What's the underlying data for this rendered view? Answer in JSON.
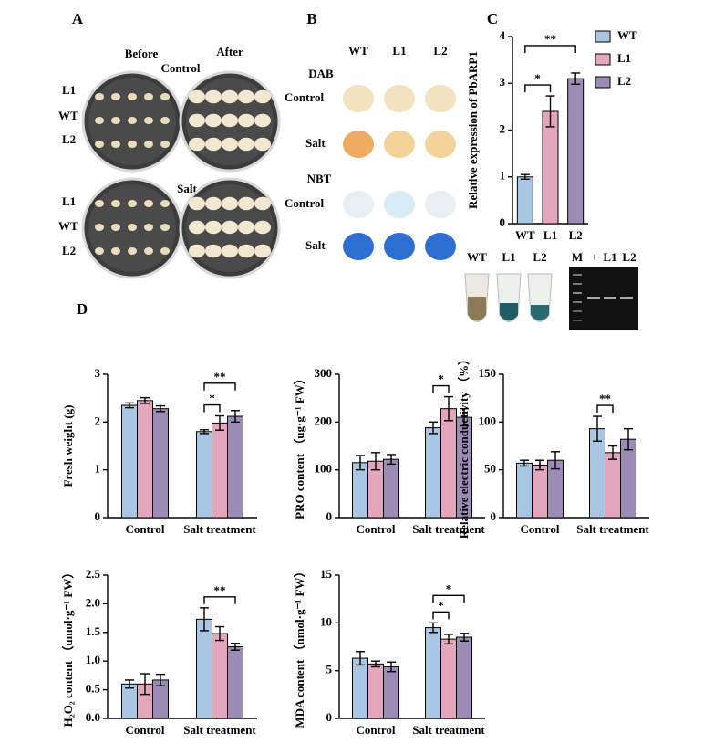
{
  "panels": {
    "A": {
      "letter": "A",
      "before": "Before",
      "after": "After",
      "control": "Control",
      "salt": "Salt",
      "rows": [
        "L1",
        "WT",
        "L2"
      ]
    },
    "B": {
      "letter": "B",
      "columns": [
        "WT",
        "L1",
        "L2"
      ],
      "dab": "DAB",
      "nbt": "NBT",
      "control": "Control",
      "salt": "Salt"
    },
    "C": {
      "letter": "C",
      "gel_tubes": [
        "WT",
        "L1",
        "L2"
      ],
      "gel_lanes": [
        "M",
        "+",
        "L1",
        "L2"
      ]
    },
    "D": {
      "letter": "D"
    }
  },
  "chart_data": [
    {
      "type": "bar",
      "ylabel": "Relative expression of PbARP1",
      "categories": [
        "WT",
        "L1",
        "L2"
      ],
      "values": [
        1.0,
        2.4,
        3.1
      ],
      "errors": [
        0.05,
        0.33,
        0.12
      ],
      "colors": [
        "#a9c6e3",
        "#e3a6bd",
        "#9b8bb5"
      ],
      "ylim": [
        0,
        4
      ],
      "yticks": [
        0,
        1,
        2,
        3,
        4
      ],
      "legend": "right",
      "annotations": [
        {
          "text": "*",
          "between": [
            "WT",
            "L1"
          ]
        },
        {
          "text": "**",
          "between": [
            "WT",
            "L2"
          ]
        }
      ]
    },
    {
      "type": "grouped_bar",
      "ylabel": "Fresh weight (g)",
      "categories": [
        "Control",
        "Salt treatment"
      ],
      "series": [
        {
          "name": "WT",
          "color": "#a9c6e3",
          "values": [
            2.35,
            1.8
          ],
          "errors": [
            0.05,
            0.04
          ]
        },
        {
          "name": "L1",
          "color": "#e3a6bd",
          "values": [
            2.45,
            1.98
          ],
          "errors": [
            0.06,
            0.15
          ]
        },
        {
          "name": "L2",
          "color": "#9b8bb5",
          "values": [
            2.28,
            2.12
          ],
          "errors": [
            0.06,
            0.12
          ]
        }
      ],
      "ylim": [
        0,
        3
      ],
      "yticks": [
        0,
        1,
        2,
        3
      ],
      "annotations": [
        {
          "text": "*",
          "category": "Salt treatment",
          "between": [
            "WT",
            "L1"
          ]
        },
        {
          "text": "**",
          "category": "Salt treatment",
          "between": [
            "WT",
            "L2"
          ]
        }
      ]
    },
    {
      "type": "grouped_bar",
      "ylabel": "PRO content （ug·g⁻¹ FW）",
      "categories": [
        "Control",
        "Salt treatment"
      ],
      "series": [
        {
          "name": "WT",
          "color": "#a9c6e3",
          "values": [
            115,
            188
          ],
          "errors": [
            15,
            12
          ]
        },
        {
          "name": "L1",
          "color": "#e3a6bd",
          "values": [
            118,
            228
          ],
          "errors": [
            18,
            25
          ]
        },
        {
          "name": "L2",
          "color": "#9b8bb5",
          "values": [
            122,
            210
          ],
          "errors": [
            10,
            18
          ]
        }
      ],
      "ylim": [
        0,
        300
      ],
      "yticks": [
        0,
        100,
        200,
        300
      ],
      "annotations": [
        {
          "text": "*",
          "category": "Salt treatment",
          "between": [
            "WT",
            "L1"
          ]
        }
      ]
    },
    {
      "type": "grouped_bar",
      "ylabel": "Relative electric conductivity （%）",
      "categories": [
        "Control",
        "Salt treatment"
      ],
      "series": [
        {
          "name": "WT",
          "color": "#a9c6e3",
          "values": [
            57,
            93
          ],
          "errors": [
            3,
            13
          ]
        },
        {
          "name": "L1",
          "color": "#e3a6bd",
          "values": [
            55,
            68
          ],
          "errors": [
            5,
            7
          ]
        },
        {
          "name": "L2",
          "color": "#9b8bb5",
          "values": [
            60,
            82
          ],
          "errors": [
            9,
            11
          ]
        }
      ],
      "ylim": [
        0,
        150
      ],
      "yticks": [
        0,
        50,
        100,
        150
      ],
      "annotations": [
        {
          "text": "**",
          "category": "Salt treatment",
          "between": [
            "WT",
            "L1"
          ]
        }
      ]
    },
    {
      "type": "grouped_bar",
      "ylabel": "H₂O₂ content （umol·g⁻¹ FW）",
      "categories": [
        "Control",
        "Salt treatment"
      ],
      "series": [
        {
          "name": "WT",
          "color": "#a9c6e3",
          "values": [
            0.6,
            1.73
          ],
          "errors": [
            0.07,
            0.2
          ]
        },
        {
          "name": "L1",
          "color": "#e3a6bd",
          "values": [
            0.6,
            1.48
          ],
          "errors": [
            0.18,
            0.12
          ]
        },
        {
          "name": "L2",
          "color": "#9b8bb5",
          "values": [
            0.67,
            1.25
          ],
          "errors": [
            0.1,
            0.06
          ]
        }
      ],
      "ylim": [
        0,
        2.5
      ],
      "yticks": [
        {
          "value": 0,
          "label": "0.0"
        },
        0.5,
        {
          "value": 1,
          "label": "1.0"
        },
        1.5,
        {
          "value": 2,
          "label": "2.0"
        },
        2.5
      ],
      "annotations": [
        {
          "text": "**",
          "category": "Salt treatment",
          "between": [
            "WT",
            "L2"
          ]
        }
      ]
    },
    {
      "type": "grouped_bar",
      "ylabel": "MDA content （nmol·g⁻¹ FW）",
      "categories": [
        "Control",
        "Salt treatment"
      ],
      "series": [
        {
          "name": "WT",
          "color": "#a9c6e3",
          "values": [
            6.3,
            9.5
          ],
          "errors": [
            0.7,
            0.5
          ]
        },
        {
          "name": "L1",
          "color": "#e3a6bd",
          "values": [
            5.7,
            8.3
          ],
          "errors": [
            0.3,
            0.5
          ]
        },
        {
          "name": "L2",
          "color": "#9b8bb5",
          "values": [
            5.4,
            8.5
          ],
          "errors": [
            0.5,
            0.4
          ]
        }
      ],
      "ylim": [
        0,
        15
      ],
      "yticks": [
        0,
        5,
        10,
        15
      ],
      "annotations": [
        {
          "text": "*",
          "category": "Salt treatment",
          "between": [
            "WT",
            "L1"
          ]
        },
        {
          "text": "*",
          "category": "Salt treatment",
          "between": [
            "WT",
            "L2"
          ]
        }
      ]
    }
  ]
}
